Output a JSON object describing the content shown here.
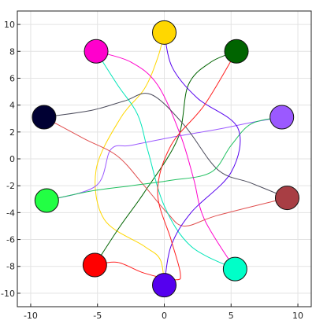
{
  "chart_data": {
    "type": "scatter",
    "title": "",
    "xlabel": "",
    "ylabel": "",
    "xlim": [
      -11,
      11
    ],
    "ylim": [
      -11,
      11
    ],
    "xticks": [
      -10,
      -5,
      0,
      5,
      10
    ],
    "yticks": [
      -10,
      -8,
      -6,
      -4,
      -2,
      0,
      2,
      4,
      6,
      8,
      10
    ],
    "grid": true,
    "nodes": [
      {
        "color": "#ffd700",
        "x": 0.0,
        "y": 9.4
      },
      {
        "color": "#006400",
        "x": 5.4,
        "y": 8.0
      },
      {
        "color": "#ff00cc",
        "x": -5.1,
        "y": 8.0
      },
      {
        "color": "#9b59ff",
        "x": 8.8,
        "y": 3.1
      },
      {
        "color": "#000033",
        "x": -9.0,
        "y": 3.1
      },
      {
        "color": "#a83e44",
        "x": 9.2,
        "y": -2.9
      },
      {
        "color": "#22ff44",
        "x": -8.8,
        "y": -3.1
      },
      {
        "color": "#ff0000",
        "x": -5.2,
        "y": -7.9
      },
      {
        "color": "#00ffc8",
        "x": 5.3,
        "y": -8.2
      },
      {
        "color": "#5500ee",
        "x": 0.0,
        "y": -9.4
      }
    ],
    "series": [
      {
        "color": "#ffd700",
        "points": [
          [
            0.0,
            9.4
          ],
          [
            -0.5,
            7.5
          ],
          [
            -1.5,
            5.2
          ],
          [
            -3.3,
            3.0
          ],
          [
            -5.1,
            -0.8
          ],
          [
            -4.5,
            -4.5
          ],
          [
            -1.5,
            -6.5
          ],
          [
            -0.3,
            -7.5
          ],
          [
            0.0,
            -9.4
          ]
        ]
      },
      {
        "color": "#006400",
        "points": [
          [
            5.4,
            8.0
          ],
          [
            3.5,
            7.2
          ],
          [
            1.8,
            5.5
          ],
          [
            1.0,
            1.5
          ],
          [
            -1.5,
            -2.5
          ],
          [
            -3.3,
            -5.0
          ],
          [
            -5.2,
            -7.9
          ]
        ]
      },
      {
        "color": "#ff00cc",
        "points": [
          [
            -5.1,
            8.0
          ],
          [
            -2.5,
            7.2
          ],
          [
            -0.5,
            5.5
          ],
          [
            1.2,
            1.8
          ],
          [
            2.2,
            -1.5
          ],
          [
            3.0,
            -4.5
          ],
          [
            5.3,
            -8.2
          ]
        ]
      },
      {
        "color": "#9b59ff",
        "points": [
          [
            8.8,
            3.1
          ],
          [
            6.5,
            2.7
          ],
          [
            4.0,
            2.2
          ],
          [
            0.5,
            1.6
          ],
          [
            -2.5,
            1.0
          ],
          [
            -4.0,
            0.7
          ],
          [
            -5.1,
            -2.0
          ],
          [
            -8.8,
            -3.1
          ]
        ]
      },
      {
        "color": "#4a4a5a",
        "points": [
          [
            -9.0,
            3.1
          ],
          [
            -5.5,
            3.6
          ],
          [
            -3.0,
            4.3
          ],
          [
            -1.0,
            4.8
          ],
          [
            1.5,
            2.5
          ],
          [
            4.0,
            -0.8
          ],
          [
            6.5,
            -1.8
          ],
          [
            9.2,
            -2.9
          ]
        ]
      },
      {
        "color": "#e05050",
        "points": [
          [
            -9.0,
            3.1
          ],
          [
            -6.0,
            1.5
          ],
          [
            -3.5,
            0.2
          ],
          [
            -1.5,
            -2.0
          ],
          [
            0.2,
            -4.0
          ],
          [
            1.5,
            -5.0
          ],
          [
            4.0,
            -4.2
          ],
          [
            9.2,
            -2.9
          ]
        ]
      },
      {
        "color": "#20c060",
        "points": [
          [
            -8.8,
            -3.1
          ],
          [
            -5.5,
            -2.4
          ],
          [
            -2.5,
            -2.0
          ],
          [
            0.5,
            -1.6
          ],
          [
            3.5,
            -1.0
          ],
          [
            5.0,
            1.0
          ],
          [
            6.5,
            2.6
          ],
          [
            8.8,
            3.1
          ]
        ]
      },
      {
        "color": "#00e5b8",
        "points": [
          [
            -5.1,
            8.0
          ],
          [
            -3.5,
            5.5
          ],
          [
            -2.0,
            3.3
          ],
          [
            -1.2,
            0.5
          ],
          [
            0.0,
            -3.5
          ],
          [
            2.0,
            -6.5
          ],
          [
            5.3,
            -8.2
          ]
        ]
      },
      {
        "color": "#5500ee",
        "points": [
          [
            0.0,
            9.4
          ],
          [
            0.6,
            6.8
          ],
          [
            2.5,
            4.5
          ],
          [
            5.5,
            2.3
          ],
          [
            5.0,
            -1.0
          ],
          [
            2.0,
            -4.0
          ],
          [
            0.5,
            -6.5
          ],
          [
            0.0,
            -9.4
          ]
        ]
      },
      {
        "color": "#ff2020",
        "points": [
          [
            -5.2,
            -7.9
          ],
          [
            -3.5,
            -7.7
          ],
          [
            -1.5,
            -8.5
          ],
          [
            0.8,
            -9.0
          ],
          [
            1.2,
            -8.5
          ],
          [
            0.5,
            -6.0
          ],
          [
            -0.5,
            -2.5
          ],
          [
            0.5,
            1.0
          ],
          [
            3.0,
            4.0
          ],
          [
            5.4,
            8.0
          ]
        ]
      }
    ]
  }
}
